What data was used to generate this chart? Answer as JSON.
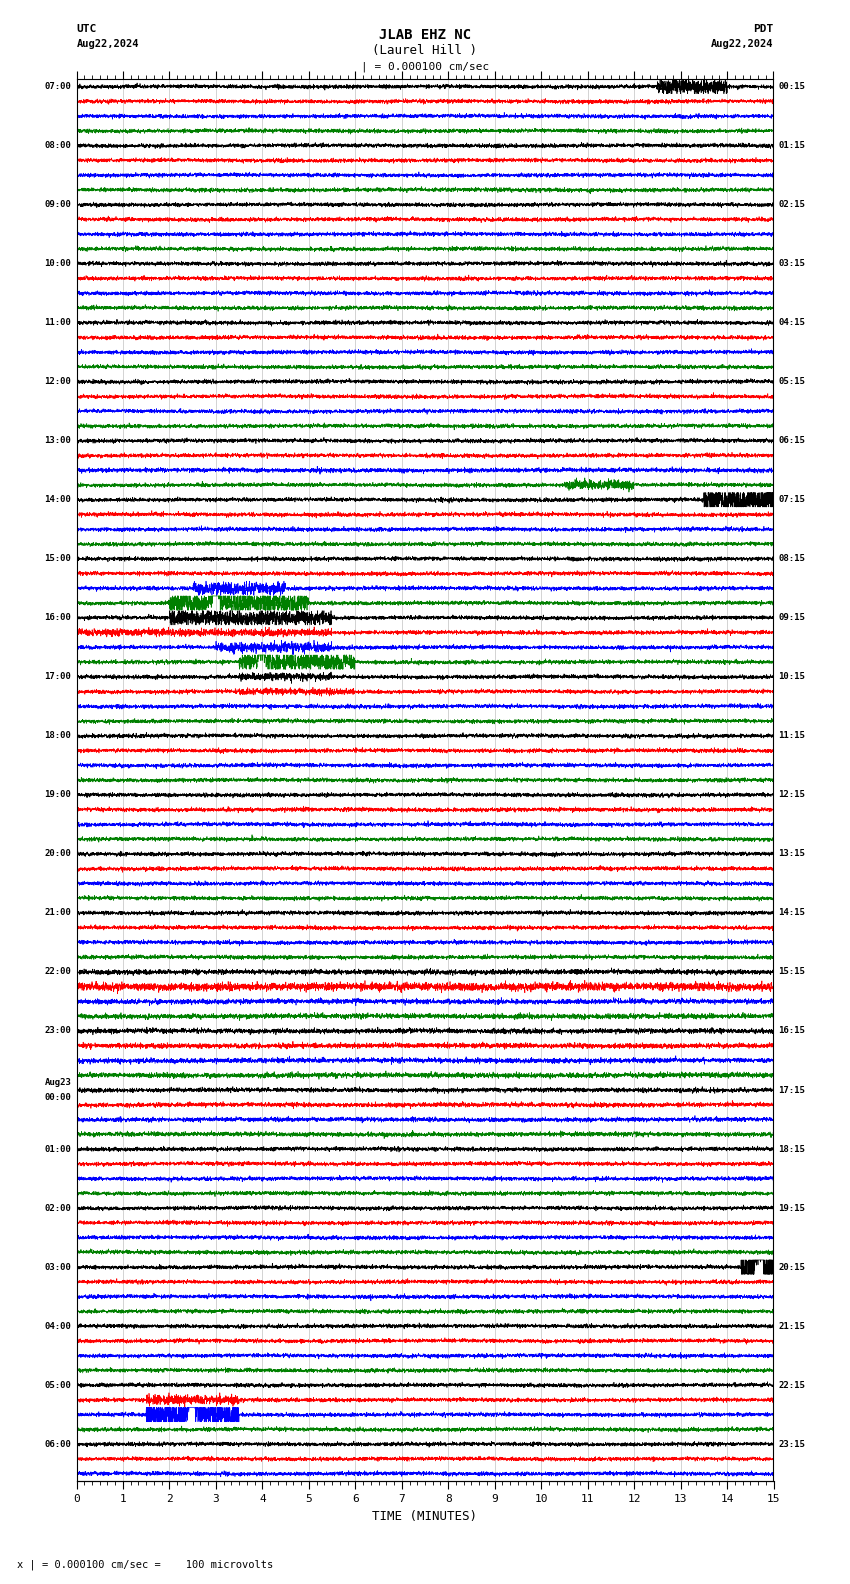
{
  "title_line1": "JLAB EHZ NC",
  "title_line2": "(Laurel Hill )",
  "scale_label": "| = 0.000100 cm/sec",
  "utc_label": "UTC",
  "utc_date": "Aug22,2024",
  "pdt_label": "PDT",
  "pdt_date": "Aug22,2024",
  "xlabel": "TIME (MINUTES)",
  "footer": "| = 0.000100 cm/sec =    100 microvolts",
  "xlim": [
    0,
    15
  ],
  "xticks": [
    0,
    1,
    2,
    3,
    4,
    5,
    6,
    7,
    8,
    9,
    10,
    11,
    12,
    13,
    14,
    15
  ],
  "trace_colors_cycle": [
    "black",
    "red",
    "blue",
    "green"
  ],
  "bg_color": "#ffffff",
  "fig_width": 8.5,
  "fig_height": 15.84,
  "dpi": 100,
  "left_labels_utc": [
    "07:00",
    "",
    "",
    "",
    "08:00",
    "",
    "",
    "",
    "09:00",
    "",
    "",
    "",
    "10:00",
    "",
    "",
    "",
    "11:00",
    "",
    "",
    "",
    "12:00",
    "",
    "",
    "",
    "13:00",
    "",
    "",
    "",
    "14:00",
    "",
    "",
    "",
    "15:00",
    "",
    "",
    "",
    "16:00",
    "",
    "",
    "",
    "17:00",
    "",
    "",
    "",
    "18:00",
    "",
    "",
    "",
    "19:00",
    "",
    "",
    "",
    "20:00",
    "",
    "",
    "",
    "21:00",
    "",
    "",
    "",
    "22:00",
    "",
    "",
    "",
    "23:00",
    "",
    "",
    "",
    "Aug23\n00:00",
    "",
    "",
    "",
    "01:00",
    "",
    "",
    "",
    "02:00",
    "",
    "",
    "",
    "03:00",
    "",
    "",
    "",
    "04:00",
    "",
    "",
    "",
    "05:00",
    "",
    "",
    "",
    "06:00",
    "",
    ""
  ],
  "right_labels_pdt": [
    "00:15",
    "",
    "",
    "",
    "01:15",
    "",
    "",
    "",
    "02:15",
    "",
    "",
    "",
    "03:15",
    "",
    "",
    "",
    "04:15",
    "",
    "",
    "",
    "05:15",
    "",
    "",
    "",
    "06:15",
    "",
    "",
    "",
    "07:15",
    "",
    "",
    "",
    "08:15",
    "",
    "",
    "",
    "09:15",
    "",
    "",
    "",
    "10:15",
    "",
    "",
    "",
    "11:15",
    "",
    "",
    "",
    "12:15",
    "",
    "",
    "",
    "13:15",
    "",
    "",
    "",
    "14:15",
    "",
    "",
    "",
    "15:15",
    "",
    "",
    "",
    "16:15",
    "",
    "",
    "",
    "17:15",
    "",
    "",
    "",
    "18:15",
    "",
    "",
    "",
    "19:15",
    "",
    "",
    "",
    "20:15",
    "",
    "",
    "",
    "21:15",
    "",
    "",
    "",
    "22:15",
    "",
    "",
    "",
    "23:15",
    "",
    ""
  ]
}
